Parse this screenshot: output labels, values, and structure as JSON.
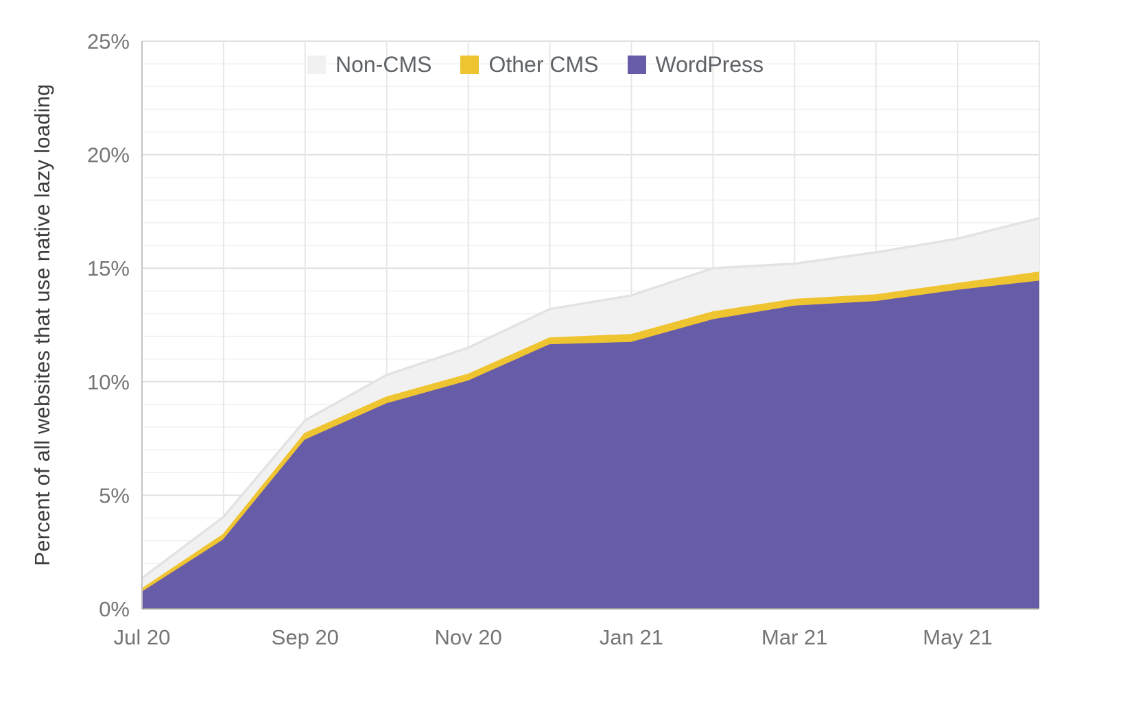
{
  "chart_data": {
    "type": "area",
    "stacked": true,
    "title": "",
    "xlabel": "",
    "ylabel": "Percent of all websites that use native lazy loading",
    "x": [
      "Jul 20",
      "Aug 20",
      "Sep 20",
      "Oct 20",
      "Nov 20",
      "Dec 20",
      "Jan 21",
      "Feb 21",
      "Mar 21",
      "Apr 21",
      "May 21",
      "Jun 21"
    ],
    "x_tick_indices": [
      0,
      2,
      4,
      6,
      8,
      10
    ],
    "x_tick_labels": [
      "Jul 20",
      "Sep 20",
      "Nov 20",
      "Jan 21",
      "Mar 21",
      "May 21"
    ],
    "ylim": [
      0,
      25
    ],
    "y_major_ticks": [
      0,
      5,
      10,
      15,
      20,
      25
    ],
    "y_tick_labels": [
      "0%",
      "5%",
      "10%",
      "15%",
      "20%",
      "25%"
    ],
    "y_minor_step": 1,
    "grid": true,
    "legend_position": "top",
    "legend_order": [
      "Non-CMS",
      "Other CMS",
      "WordPress"
    ],
    "series": [
      {
        "name": "WordPress",
        "color": "#675ca8",
        "values": [
          0.7,
          3.0,
          7.4,
          9.0,
          10.0,
          11.6,
          11.7,
          12.7,
          13.3,
          13.5,
          14.0,
          14.4
        ]
      },
      {
        "name": "Other CMS",
        "color": "#efc431",
        "values": [
          0.15,
          0.25,
          0.3,
          0.3,
          0.3,
          0.3,
          0.35,
          0.35,
          0.3,
          0.3,
          0.3,
          0.4
        ]
      },
      {
        "name": "Non-CMS",
        "color": "#f1f1f1",
        "values": [
          0.5,
          0.8,
          0.6,
          1.0,
          1.2,
          1.3,
          1.75,
          1.95,
          1.6,
          1.9,
          2.0,
          2.4
        ]
      }
    ]
  },
  "style": {
    "minor_grid_color": "#efefef",
    "major_grid_color": "#e0e0e0",
    "vertical_grid_color": "#e7e7e7",
    "left_axis_color": "#c4c4c4",
    "bottom_axis_color": "#9a9a9a",
    "noncms_edge_color": "#e3e3e3"
  }
}
